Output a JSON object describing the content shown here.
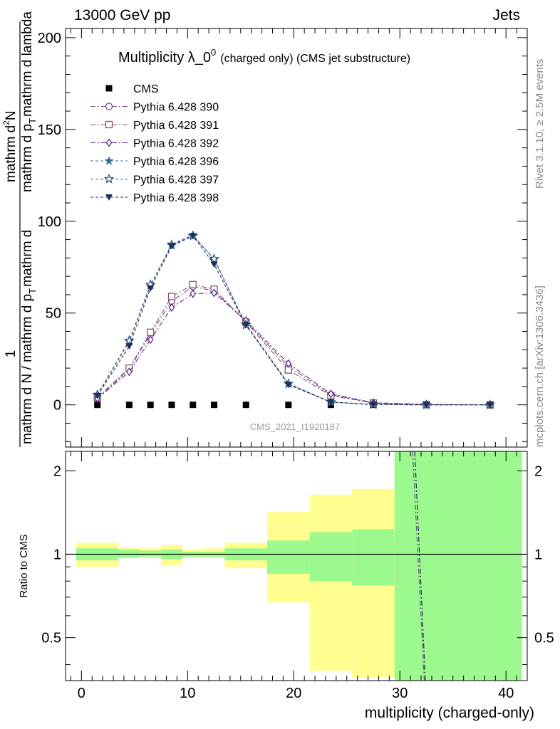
{
  "header": {
    "left": "13000 GeV pp",
    "right": "Jets"
  },
  "side": {
    "rivet": "Rivet 3.1.10, ≥ 2.5M events",
    "mcplots": "mcplots.cern.ch [arXiv:1306.3436]"
  },
  "main": {
    "title_main": "Multiplicity λ_0",
    "title_sup": "0",
    "title_small": "(charged only) (CMS jet substructure)",
    "analysis_id": "CMS_2021_I1920187",
    "ylabel_num_1": "1",
    "ylabel_den_1": "mathrm d N / mathrm d p",
    "ylabel_num_2": "mathrm d",
    "ylabel_num_2b": "N",
    "ylabel_den_2": "mathrm d p",
    "ylabel_den_2b": "mathrm d lambda",
    "ylabel_sub": "T",
    "ylabel_sup": "2"
  },
  "ratio": {
    "ylabel": "Ratio to CMS"
  },
  "xlabel": "multiplicity (charged-only)",
  "colors": {
    "band_stat": "#9bf98e",
    "band_total": "#fffe8e",
    "data": "#000000",
    "p390": "#7b4a8c",
    "p391": "#8c5466",
    "p392": "#5c2d8c",
    "p396": "#3d6f8c",
    "p397": "#2e5680",
    "p398": "#1c2f5c"
  },
  "chart_data": [
    {
      "type": "line",
      "title": "Multiplicity λ_0^0 (charged only) (CMS jet substructure)",
      "xlabel": "multiplicity (charged-only)",
      "ylabel": "1/(mathrm d N / mathrm d p_T) mathrm d^2N/(mathrm d p_T mathrm d lambda)",
      "xlim": [
        -1.5,
        42
      ],
      "ylim": [
        -23,
        205
      ],
      "xticks": [
        0,
        10,
        20,
        30,
        40
      ],
      "yticks": [
        0,
        50,
        100,
        150,
        200
      ],
      "legend_position": "top-left",
      "grid": false,
      "x": [
        1.5,
        4.5,
        6.5,
        8.5,
        10.5,
        12.5,
        15.5,
        19.5,
        23.5,
        27.5,
        32.5,
        38.5
      ],
      "series": [
        {
          "name": "CMS",
          "marker": "square",
          "values": [
            0,
            0,
            0,
            0,
            0,
            0,
            0,
            0,
            0,
            0,
            null,
            null
          ]
        },
        {
          "name": "Pythia 6.428 390",
          "marker": "circle",
          "dash": "dashdot",
          "values": [
            3.5,
            19.5,
            38.5,
            56.5,
            64.5,
            62.0,
            45.5,
            21.0,
            5.5,
            1.0,
            0.2,
            0.05
          ]
        },
        {
          "name": "Pythia 6.428 391",
          "marker": "square-open",
          "dash": "dashdot",
          "values": [
            4.0,
            20.0,
            39.5,
            59.0,
            65.5,
            63.0,
            45.0,
            19.0,
            5.0,
            1.0,
            0.2,
            0.05
          ]
        },
        {
          "name": "Pythia 6.428 392",
          "marker": "diamond-open",
          "dash": "dashdot",
          "values": [
            3.5,
            18.0,
            35.5,
            53.0,
            60.5,
            61.0,
            46.0,
            22.5,
            6.0,
            1.2,
            0.2,
            0.05
          ]
        },
        {
          "name": "Pythia 6.428 396",
          "marker": "star",
          "dash": "dashed",
          "values": [
            5.5,
            34.5,
            65.0,
            87.5,
            92.5,
            79.0,
            44.0,
            11.5,
            1.5,
            0.2,
            0.0,
            0.0
          ]
        },
        {
          "name": "Pythia 6.428 397",
          "marker": "star-open",
          "dash": "dashed",
          "values": [
            5.5,
            35.0,
            65.5,
            87.0,
            92.0,
            79.5,
            43.5,
            11.5,
            1.5,
            0.2,
            0.0,
            0.0
          ]
        },
        {
          "name": "Pythia 6.428 398",
          "marker": "triangle-down",
          "dash": "dashed",
          "values": [
            5.0,
            32.0,
            63.5,
            86.5,
            92.0,
            76.5,
            43.5,
            11.0,
            1.5,
            0.2,
            0.0,
            0.0
          ]
        }
      ]
    },
    {
      "type": "area",
      "title": "",
      "ylabel": "Ratio to CMS",
      "xlim": [
        -1.5,
        42
      ],
      "ylim": [
        0.35,
        2.35
      ],
      "yticks": [
        0.5,
        1,
        2
      ],
      "bins": [
        {
          "lo": -0.5,
          "hi": 3.5,
          "stat": [
            0.95,
            1.05
          ],
          "total": [
            0.9,
            1.1
          ]
        },
        {
          "lo": 3.5,
          "hi": 5.5,
          "stat": [
            0.97,
            1.04
          ],
          "total": [
            0.97,
            1.06
          ]
        },
        {
          "lo": 5.5,
          "hi": 7.5,
          "stat": [
            0.98,
            1.03
          ],
          "total": [
            0.97,
            1.05
          ]
        },
        {
          "lo": 7.5,
          "hi": 9.5,
          "stat": [
            0.96,
            1.04
          ],
          "total": [
            0.91,
            1.08
          ]
        },
        {
          "lo": 9.5,
          "hi": 11.5,
          "stat": [
            0.98,
            1.02
          ],
          "total": [
            0.97,
            1.04
          ]
        },
        {
          "lo": 11.5,
          "hi": 13.5,
          "stat": [
            0.98,
            1.02
          ],
          "total": [
            0.97,
            1.05
          ]
        },
        {
          "lo": 13.5,
          "hi": 17.5,
          "stat": [
            0.95,
            1.05
          ],
          "total": [
            0.89,
            1.1
          ]
        },
        {
          "lo": 17.5,
          "hi": 21.5,
          "stat": [
            0.85,
            1.12
          ],
          "total": [
            0.67,
            1.42
          ]
        },
        {
          "lo": 21.5,
          "hi": 25.5,
          "stat": [
            0.8,
            1.2
          ],
          "total": [
            0.38,
            1.64
          ]
        },
        {
          "lo": 25.5,
          "hi": 29.5,
          "stat": [
            0.77,
            1.23
          ],
          "total": [
            0.36,
            1.72
          ]
        },
        {
          "lo": 29.5,
          "hi": 41.5,
          "stat": [
            0.35,
            2.35
          ],
          "total": [
            0.35,
            2.35
          ]
        }
      ],
      "reference_line": 1,
      "series": [
        {
          "name": "Pythia 6.428 390",
          "x": [
            31.2,
            32.3
          ],
          "values": [
            2.35,
            0.35
          ]
        },
        {
          "name": "Pythia 6.428 392",
          "x": [
            31.4,
            32.4
          ],
          "values": [
            2.35,
            0.35
          ]
        }
      ]
    }
  ]
}
